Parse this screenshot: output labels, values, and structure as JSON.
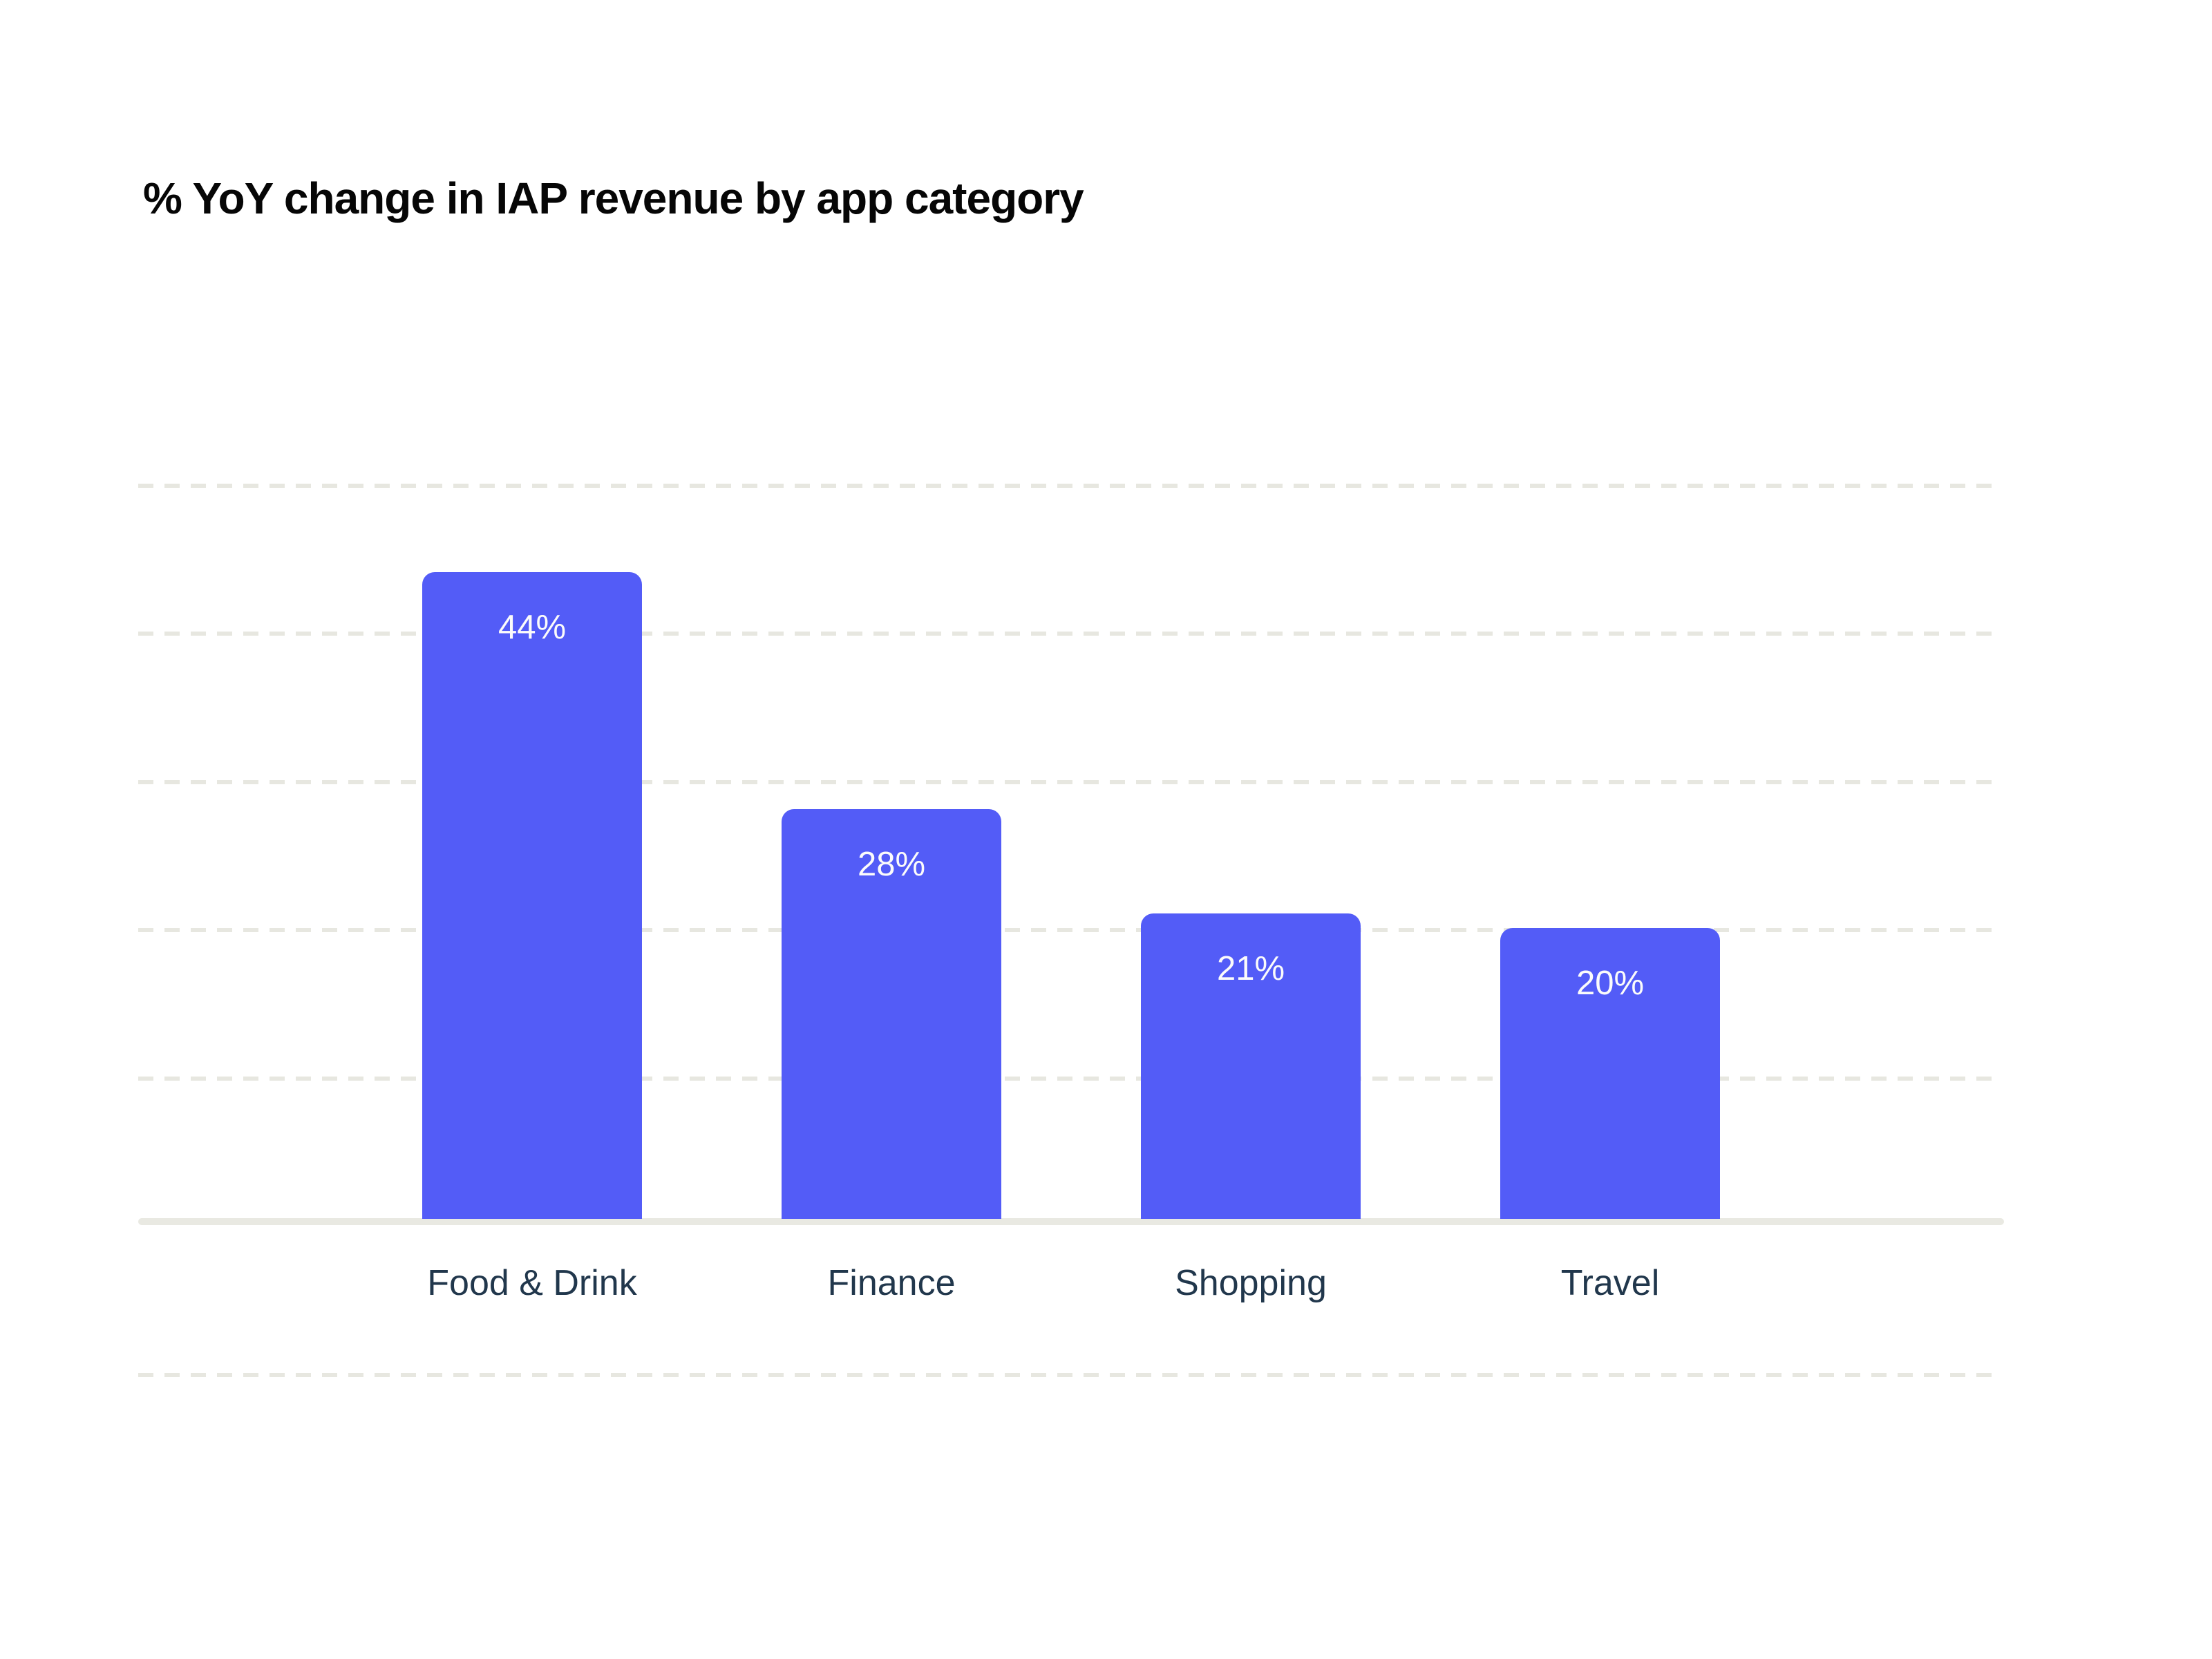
{
  "chart_data": {
    "type": "bar",
    "title": "% YoY change in IAP revenue by app category",
    "categories": [
      "Food & Drink",
      "Finance",
      "Shopping",
      "Travel"
    ],
    "values": [
      44,
      28,
      21,
      20
    ],
    "value_labels": [
      "44%",
      "28%",
      "21%",
      "20%"
    ],
    "xlabel": "",
    "ylabel": "",
    "ylim": [
      -10,
      55
    ],
    "gridline_values": [
      50,
      40,
      30,
      20,
      10,
      -10
    ],
    "grid": "horizontal-dashed",
    "legend_position": "none",
    "value_label_position": "inside-top"
  },
  "colors": {
    "background": "#ffffff",
    "bar": "#535cf7",
    "gridline": "#e7e7e0",
    "axis_line": "#e9e9e2",
    "title_text": "#060606",
    "category_text": "#21374c",
    "value_text": "#fbfbfb"
  }
}
